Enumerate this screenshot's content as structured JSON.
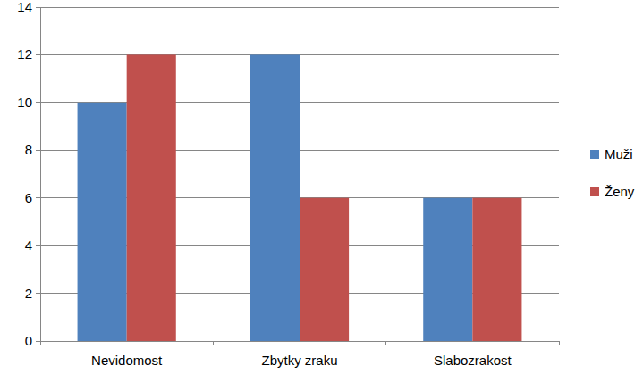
{
  "chart_data": {
    "type": "bar",
    "categories": [
      "Nevidomost",
      "Zbytky zraku",
      "Slabozrakost"
    ],
    "series": [
      {
        "name": "Muži",
        "color": "#4f81bd",
        "values": [
          10,
          12,
          6
        ]
      },
      {
        "name": "Ženy",
        "color": "#c0504d",
        "values": [
          12,
          6,
          6
        ]
      }
    ],
    "ylim": [
      0,
      14
    ],
    "yticks": [
      0,
      2,
      4,
      6,
      8,
      10,
      12,
      14
    ],
    "grid": true,
    "legend": "right"
  }
}
